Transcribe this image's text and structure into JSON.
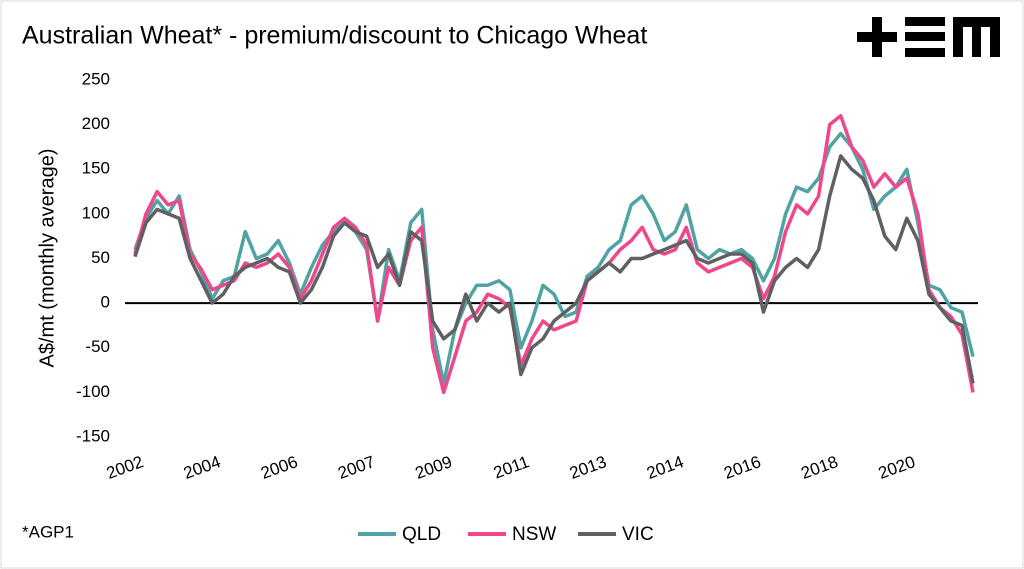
{
  "chart_data": {
    "type": "line",
    "title": "Australian Wheat* - premium/discount to Chicago Wheat",
    "y_label": "A$/mt (monthly average)",
    "footnote": "*AGP1",
    "categories": [
      "2002",
      null,
      null,
      null,
      null,
      null,
      null,
      "2004",
      null,
      null,
      null,
      null,
      null,
      null,
      "2006",
      null,
      null,
      null,
      null,
      null,
      null,
      "2007",
      null,
      null,
      null,
      null,
      null,
      null,
      "2009",
      null,
      null,
      null,
      null,
      null,
      null,
      "2011",
      null,
      null,
      null,
      null,
      null,
      null,
      "2013",
      null,
      null,
      null,
      null,
      null,
      null,
      "2014",
      null,
      null,
      null,
      null,
      null,
      null,
      "2016",
      null,
      null,
      null,
      null,
      null,
      null,
      "2018",
      null,
      null,
      null,
      null,
      null,
      null,
      "2020",
      null,
      null,
      null,
      null,
      null,
      null
    ],
    "series": [
      {
        "name": "QLD",
        "color": "#4fa3a5",
        "values": [
          60,
          95,
          115,
          100,
          120,
          60,
          35,
          5,
          25,
          30,
          80,
          50,
          55,
          70,
          45,
          10,
          40,
          65,
          80,
          90,
          80,
          60,
          -20,
          60,
          25,
          90,
          105,
          -30,
          -90,
          -30,
          0,
          20,
          20,
          25,
          15,
          -50,
          -20,
          20,
          10,
          -15,
          -10,
          30,
          40,
          60,
          70,
          110,
          120,
          100,
          70,
          80,
          110,
          60,
          50,
          60,
          55,
          60,
          50,
          25,
          50,
          100,
          130,
          125,
          140,
          175,
          190,
          175,
          150,
          105,
          120,
          130,
          150,
          90,
          20,
          15,
          -5,
          -10,
          -60
        ]
      },
      {
        "name": "NSW",
        "color": "#f0468c",
        "values": [
          55,
          100,
          125,
          110,
          115,
          55,
          38,
          15,
          20,
          25,
          45,
          40,
          45,
          55,
          40,
          5,
          25,
          55,
          85,
          95,
          85,
          65,
          -20,
          40,
          20,
          70,
          85,
          -50,
          -100,
          -60,
          -20,
          -10,
          10,
          5,
          -5,
          -70,
          -40,
          -20,
          -30,
          -25,
          -20,
          25,
          35,
          45,
          60,
          70,
          85,
          60,
          55,
          60,
          85,
          45,
          35,
          40,
          45,
          50,
          40,
          5,
          30,
          80,
          110,
          100,
          120,
          200,
          210,
          175,
          160,
          130,
          145,
          130,
          140,
          100,
          15,
          -5,
          -15,
          -35,
          -100
        ]
      },
      {
        "name": "VIC",
        "color": "#5f6062",
        "values": [
          52,
          90,
          105,
          100,
          95,
          50,
          25,
          0,
          10,
          30,
          40,
          45,
          50,
          40,
          35,
          0,
          15,
          40,
          75,
          90,
          80,
          75,
          40,
          55,
          20,
          80,
          70,
          -20,
          -40,
          -30,
          10,
          -20,
          0,
          -10,
          0,
          -80,
          -50,
          -40,
          -20,
          -10,
          0,
          25,
          35,
          45,
          35,
          50,
          50,
          55,
          60,
          65,
          70,
          50,
          45,
          50,
          55,
          55,
          45,
          -10,
          25,
          40,
          50,
          40,
          60,
          120,
          165,
          150,
          140,
          115,
          75,
          60,
          95,
          70,
          10,
          -5,
          -20,
          -25,
          -90
        ]
      }
    ],
    "ylim": [
      -150,
      250
    ],
    "yticks": [
      -150,
      -100,
      -50,
      0,
      50,
      100,
      150,
      200,
      250
    ],
    "zero_line": true,
    "legend": "bottom"
  }
}
